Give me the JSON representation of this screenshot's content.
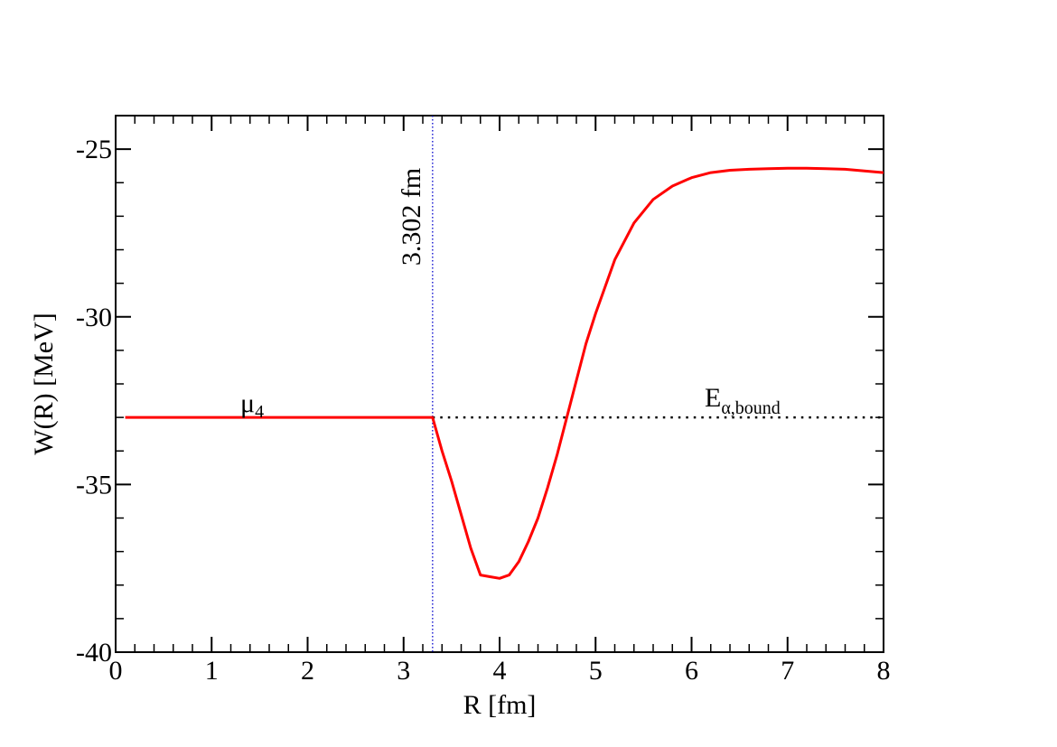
{
  "chart_data": {
    "type": "line",
    "title": "",
    "xlabel": "R [fm]",
    "ylabel": "W(R) [MeV]",
    "xlim": [
      0,
      8
    ],
    "ylim": [
      -40,
      -24
    ],
    "x_ticks": [
      0,
      1,
      2,
      3,
      4,
      5,
      6,
      7,
      8
    ],
    "x_tick_labels": [
      "0",
      "1",
      "2",
      "3",
      "4",
      "5",
      "6",
      "7",
      "8"
    ],
    "y_ticks": [
      -40,
      -35,
      -30,
      -25
    ],
    "y_tick_labels": [
      "-40",
      "-35",
      "-30",
      "-25"
    ],
    "grid": false,
    "series": [
      {
        "color": "#ff0000",
        "style": "solid",
        "x": [
          0.1,
          0.5,
          1.0,
          1.5,
          2.0,
          2.5,
          3.0,
          3.302,
          3.4,
          3.5,
          3.6,
          3.7,
          3.8,
          3.9,
          4.0,
          4.1,
          4.2,
          4.3,
          4.4,
          4.5,
          4.6,
          4.7,
          4.8,
          4.9,
          5.0,
          5.2,
          5.4,
          5.6,
          5.8,
          6.0,
          6.2,
          6.4,
          6.6,
          6.8,
          7.0,
          7.2,
          7.4,
          7.6,
          7.8,
          8.0
        ],
        "y": [
          -33.0,
          -33.0,
          -33.0,
          -33.0,
          -33.0,
          -33.0,
          -33.0,
          -33.0,
          -34.0,
          -34.9,
          -35.9,
          -36.9,
          -37.7,
          -37.75,
          -37.8,
          -37.7,
          -37.3,
          -36.7,
          -36.0,
          -35.1,
          -34.1,
          -33.0,
          -31.9,
          -30.8,
          -29.9,
          -28.3,
          -27.2,
          -26.5,
          -26.1,
          -25.85,
          -25.7,
          -25.63,
          -25.6,
          -25.58,
          -25.57,
          -25.57,
          -25.58,
          -25.6,
          -25.65,
          -25.7
        ]
      },
      {
        "color": "#000000",
        "style": "dotted",
        "x": [
          3.302,
          8.0
        ],
        "y": [
          -33.0,
          -33.0
        ]
      }
    ],
    "vline": {
      "x": 3.302,
      "color": "#0000cc",
      "style": "dotted"
    },
    "annotations": {
      "vline_label": "3.302 fm",
      "mu_base": "μ",
      "mu_sub": "4",
      "e_base": "E",
      "e_sub": "α,bound"
    }
  }
}
